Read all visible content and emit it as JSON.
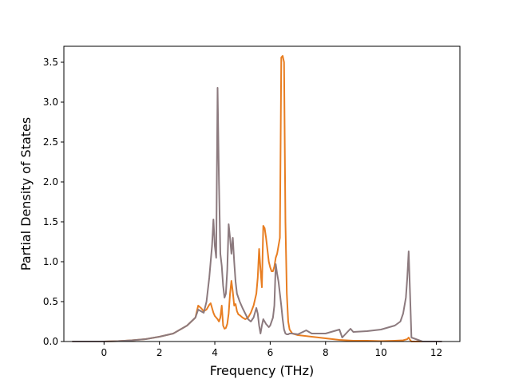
{
  "chart_data": {
    "type": "line",
    "xlabel": "Frequency (THz)",
    "ylabel": "Partial Density of States",
    "xlim": [
      -1.45,
      12.85
    ],
    "ylim": [
      0,
      3.7
    ],
    "xticks": [
      0,
      2,
      4,
      6,
      8,
      10,
      12
    ],
    "yticks": [
      0.0,
      0.5,
      1.0,
      1.5,
      2.0,
      2.5,
      3.0,
      3.5
    ],
    "xtick_labels": [
      "0",
      "2",
      "4",
      "6",
      "8",
      "10",
      "12"
    ],
    "ytick_labels": [
      "0.0",
      "0.5",
      "1.0",
      "1.5",
      "2.0",
      "2.5",
      "3.0",
      "3.5"
    ],
    "grid": false,
    "series": [
      {
        "color": "#e87e22",
        "x": [
          -1.15,
          -0.5,
          0,
          0.5,
          1.0,
          1.5,
          2.0,
          2.5,
          3.0,
          3.3,
          3.4,
          3.5,
          3.6,
          3.7,
          3.75,
          3.8,
          3.85,
          3.9,
          3.95,
          4.0,
          4.05,
          4.1,
          4.15,
          4.2,
          4.25,
          4.3,
          4.35,
          4.4,
          4.45,
          4.5,
          4.55,
          4.6,
          4.65,
          4.7,
          4.75,
          4.8,
          4.85,
          4.9,
          5.0,
          5.1,
          5.2,
          5.3,
          5.4,
          5.5,
          5.55,
          5.6,
          5.65,
          5.7,
          5.75,
          5.8,
          5.85,
          5.9,
          5.95,
          6.0,
          6.05,
          6.1,
          6.15,
          6.2,
          6.25,
          6.3,
          6.35,
          6.4,
          6.45,
          6.5,
          6.55,
          6.6,
          6.65,
          6.7,
          6.8,
          7.0,
          7.5,
          8.0,
          8.5,
          9.0,
          9.5,
          10.0,
          10.5,
          10.8,
          10.95,
          11.0,
          11.05,
          11.1,
          11.5,
          12.2
        ],
        "y": [
          0.0,
          0.0,
          0.0,
          0.005,
          0.015,
          0.03,
          0.06,
          0.1,
          0.2,
          0.3,
          0.45,
          0.42,
          0.38,
          0.4,
          0.43,
          0.46,
          0.48,
          0.42,
          0.36,
          0.32,
          0.3,
          0.28,
          0.25,
          0.3,
          0.45,
          0.2,
          0.16,
          0.17,
          0.22,
          0.35,
          0.6,
          0.76,
          0.62,
          0.45,
          0.47,
          0.38,
          0.34,
          0.33,
          0.3,
          0.28,
          0.3,
          0.36,
          0.45,
          0.6,
          0.8,
          1.16,
          0.9,
          0.68,
          1.45,
          1.42,
          1.3,
          1.15,
          1.0,
          0.93,
          0.88,
          0.88,
          0.94,
          1.05,
          1.1,
          1.2,
          1.3,
          3.56,
          3.58,
          3.5,
          1.5,
          0.6,
          0.25,
          0.15,
          0.1,
          0.08,
          0.06,
          0.04,
          0.02,
          0.01,
          0.01,
          0.005,
          0.01,
          0.015,
          0.03,
          0.05,
          0.02,
          0.0,
          0.0,
          0.0
        ]
      },
      {
        "color": "#8c7a7e",
        "x": [
          -1.15,
          -0.5,
          0,
          0.5,
          1.0,
          1.5,
          2.0,
          2.5,
          3.0,
          3.3,
          3.4,
          3.5,
          3.6,
          3.7,
          3.75,
          3.8,
          3.85,
          3.9,
          3.95,
          4.0,
          4.05,
          4.1,
          4.15,
          4.2,
          4.25,
          4.3,
          4.35,
          4.4,
          4.45,
          4.5,
          4.55,
          4.6,
          4.65,
          4.7,
          4.75,
          4.8,
          4.85,
          4.9,
          5.0,
          5.1,
          5.2,
          5.3,
          5.4,
          5.5,
          5.55,
          5.6,
          5.65,
          5.7,
          5.75,
          5.8,
          5.85,
          5.9,
          5.95,
          6.0,
          6.05,
          6.1,
          6.15,
          6.2,
          6.25,
          6.3,
          6.35,
          6.4,
          6.45,
          6.5,
          6.55,
          6.6,
          6.65,
          6.7,
          6.8,
          7.0,
          7.3,
          7.5,
          7.7,
          7.8,
          8.0,
          8.5,
          8.6,
          8.9,
          9.0,
          9.5,
          10.0,
          10.3,
          10.5,
          10.7,
          10.8,
          10.9,
          10.95,
          11.0,
          11.05,
          11.1,
          11.5,
          12.2
        ],
        "y": [
          0.0,
          0.0,
          0.0,
          0.005,
          0.015,
          0.03,
          0.06,
          0.1,
          0.2,
          0.3,
          0.4,
          0.38,
          0.36,
          0.5,
          0.65,
          0.8,
          1.0,
          1.2,
          1.53,
          1.2,
          1.05,
          3.18,
          2.0,
          1.1,
          0.95,
          0.7,
          0.55,
          0.6,
          0.9,
          1.47,
          1.3,
          1.1,
          1.3,
          1.0,
          0.75,
          0.6,
          0.55,
          0.5,
          0.42,
          0.35,
          0.28,
          0.25,
          0.3,
          0.42,
          0.35,
          0.2,
          0.1,
          0.2,
          0.28,
          0.25,
          0.22,
          0.2,
          0.18,
          0.2,
          0.25,
          0.3,
          0.45,
          0.97,
          0.85,
          0.75,
          0.6,
          0.45,
          0.28,
          0.15,
          0.1,
          0.09,
          0.09,
          0.1,
          0.1,
          0.09,
          0.14,
          0.1,
          0.1,
          0.1,
          0.1,
          0.15,
          0.05,
          0.16,
          0.12,
          0.13,
          0.15,
          0.18,
          0.2,
          0.25,
          0.35,
          0.55,
          0.8,
          1.13,
          0.6,
          0.05,
          0.0,
          0.0
        ]
      }
    ]
  }
}
